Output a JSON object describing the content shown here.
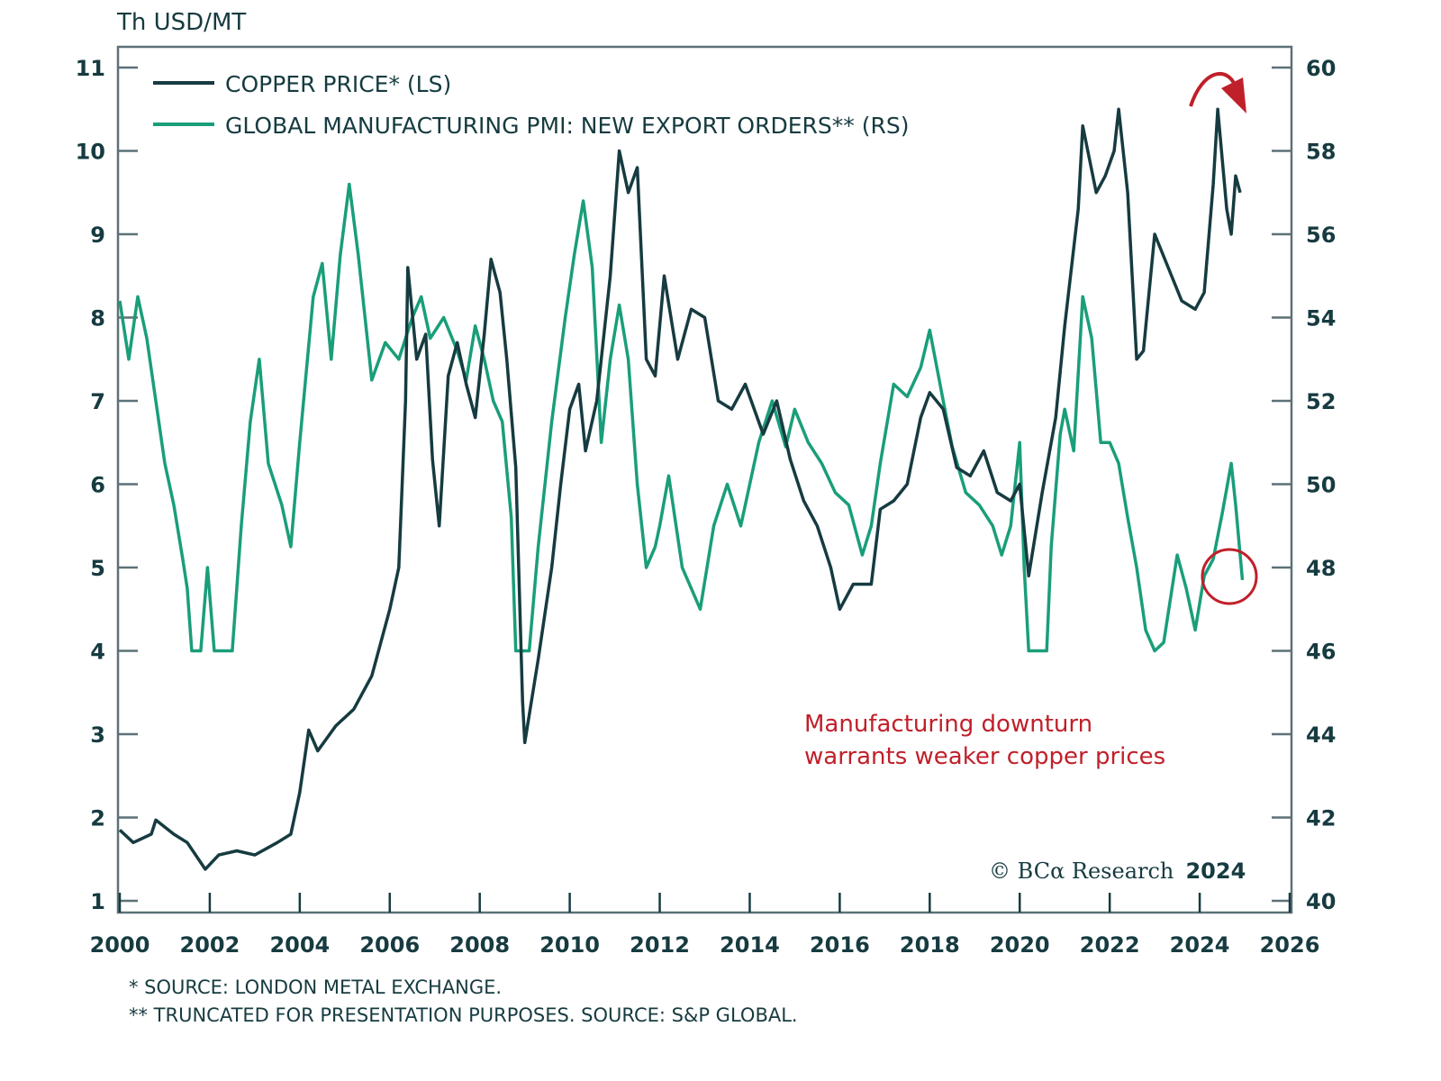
{
  "chart_data": {
    "type": "line",
    "title": "",
    "left_axis_unit": "Th USD/MT",
    "xlabel": "",
    "ylabel_left": "Th USD/MT",
    "ylabel_right": "",
    "xlim": [
      2000,
      2026
    ],
    "ylim_left": [
      1,
      11
    ],
    "ylim_right": [
      40,
      60
    ],
    "x_ticks": [
      2000,
      2002,
      2004,
      2006,
      2008,
      2010,
      2012,
      2014,
      2016,
      2018,
      2020,
      2022,
      2024,
      2026
    ],
    "y_ticks_left": [
      1,
      2,
      3,
      4,
      5,
      6,
      7,
      8,
      9,
      10,
      11
    ],
    "y_ticks_right": [
      40,
      42,
      44,
      46,
      48,
      50,
      52,
      54,
      56,
      58,
      60
    ],
    "grid": false,
    "legend_position": "top-left",
    "series": [
      {
        "name": "COPPER PRICE* (LS)",
        "axis": "left",
        "color": "#163b40",
        "x": [
          2000.0,
          2000.3,
          2000.7,
          2000.8,
          2001.2,
          2001.5,
          2001.9,
          2002.2,
          2002.6,
          2003.0,
          2003.5,
          2003.8,
          2004.0,
          2004.2,
          2004.4,
          2004.8,
          2005.2,
          2005.6,
          2006.0,
          2006.2,
          2006.35,
          2006.4,
          2006.6,
          2006.8,
          2006.95,
          2007.1,
          2007.3,
          2007.5,
          2007.7,
          2007.9,
          2008.1,
          2008.25,
          2008.45,
          2008.6,
          2008.8,
          2008.95,
          2009.0,
          2009.3,
          2009.6,
          2009.8,
          2010.0,
          2010.2,
          2010.35,
          2010.6,
          2010.9,
          2011.1,
          2011.3,
          2011.5,
          2011.7,
          2011.9,
          2012.1,
          2012.4,
          2012.7,
          2013.0,
          2013.3,
          2013.6,
          2013.9,
          2014.3,
          2014.6,
          2014.9,
          2015.2,
          2015.5,
          2015.8,
          2016.0,
          2016.3,
          2016.7,
          2016.9,
          2017.2,
          2017.5,
          2017.8,
          2018.0,
          2018.3,
          2018.6,
          2018.9,
          2019.2,
          2019.5,
          2019.8,
          2020.0,
          2020.2,
          2020.5,
          2020.8,
          2021.0,
          2021.3,
          2021.4,
          2021.7,
          2021.9,
          2022.1,
          2022.2,
          2022.4,
          2022.6,
          2022.75,
          2023.0,
          2023.3,
          2023.6,
          2023.9,
          2024.1,
          2024.3,
          2024.4,
          2024.6,
          2024.7,
          2024.8,
          2024.9
        ],
        "values": [
          1.85,
          1.7,
          1.8,
          1.97,
          1.8,
          1.7,
          1.38,
          1.55,
          1.6,
          1.55,
          1.7,
          1.8,
          2.3,
          3.05,
          2.8,
          3.1,
          3.3,
          3.7,
          4.5,
          5.0,
          7.0,
          8.6,
          7.5,
          7.8,
          6.3,
          5.5,
          7.3,
          7.7,
          7.2,
          6.8,
          7.8,
          8.7,
          8.3,
          7.5,
          6.2,
          3.4,
          2.9,
          3.9,
          5.0,
          6.0,
          6.9,
          7.2,
          6.4,
          7.0,
          8.5,
          10.0,
          9.5,
          9.8,
          7.5,
          7.3,
          8.5,
          7.5,
          8.1,
          8.0,
          7.0,
          6.9,
          7.2,
          6.6,
          7.0,
          6.3,
          5.8,
          5.5,
          5.0,
          4.5,
          4.8,
          4.8,
          5.7,
          5.8,
          6.0,
          6.8,
          7.1,
          6.9,
          6.2,
          6.1,
          6.4,
          5.9,
          5.8,
          6.0,
          4.9,
          5.9,
          6.8,
          7.9,
          9.3,
          10.3,
          9.5,
          9.7,
          10.0,
          10.5,
          9.5,
          7.5,
          7.6,
          9.0,
          8.6,
          8.2,
          8.1,
          8.3,
          9.6,
          10.5,
          9.3,
          9.0,
          9.7,
          9.5
        ]
      },
      {
        "name": "GLOBAL MANUFACTURING PMI: NEW EXPORT ORDERS** (RS)",
        "axis": "right",
        "color": "#1a9e7a",
        "x": [
          2000.0,
          2000.2,
          2000.4,
          2000.6,
          2000.8,
          2001.0,
          2001.2,
          2001.4,
          2001.5,
          2001.6,
          2001.8,
          2001.95,
          2002.1,
          2002.5,
          2002.7,
          2002.9,
          2003.1,
          2003.3,
          2003.6,
          2003.8,
          2004.0,
          2004.3,
          2004.5,
          2004.7,
          2004.9,
          2005.1,
          2005.3,
          2005.6,
          2005.9,
          2006.2,
          2006.5,
          2006.7,
          2006.9,
          2007.2,
          2007.5,
          2007.7,
          2007.9,
          2008.1,
          2008.3,
          2008.5,
          2008.7,
          2008.8,
          2009.1,
          2009.3,
          2009.6,
          2009.9,
          2010.1,
          2010.3,
          2010.5,
          2010.7,
          2010.9,
          2011.1,
          2011.3,
          2011.5,
          2011.7,
          2011.9,
          2012.0,
          2012.2,
          2012.5,
          2012.7,
          2012.9,
          2013.2,
          2013.5,
          2013.8,
          2014.2,
          2014.5,
          2014.8,
          2015.0,
          2015.3,
          2015.6,
          2015.9,
          2016.2,
          2016.5,
          2016.7,
          2016.9,
          2017.2,
          2017.5,
          2017.8,
          2018.0,
          2018.3,
          2018.5,
          2018.8,
          2019.1,
          2019.4,
          2019.6,
          2019.8,
          2020.0,
          2020.1,
          2020.2,
          2020.6,
          2020.7,
          2020.9,
          2021.0,
          2021.2,
          2021.4,
          2021.6,
          2021.8,
          2022.0,
          2022.2,
          2022.4,
          2022.6,
          2022.8,
          2023.0,
          2023.2,
          2023.5,
          2023.7,
          2023.9,
          2024.1,
          2024.3,
          2024.5,
          2024.7,
          2024.8,
          2024.95
        ],
        "values": [
          54.4,
          53.0,
          54.5,
          53.5,
          52.0,
          50.5,
          49.5,
          48.2,
          47.5,
          46.0,
          46.0,
          48.0,
          46.0,
          46.0,
          49.0,
          51.5,
          53.0,
          50.5,
          49.5,
          48.5,
          51.0,
          54.5,
          55.3,
          53.0,
          55.5,
          57.2,
          55.5,
          52.5,
          53.4,
          53.0,
          54.0,
          54.5,
          53.5,
          54.0,
          53.2,
          52.5,
          53.8,
          53.0,
          52.0,
          51.5,
          49.2,
          46.0,
          46.0,
          48.5,
          51.5,
          54.0,
          55.5,
          56.8,
          55.2,
          51.0,
          53.0,
          54.3,
          53.0,
          50.0,
          48.0,
          48.5,
          49.0,
          50.2,
          48.0,
          47.5,
          47.0,
          49.0,
          50.0,
          49.0,
          51.0,
          52.0,
          50.9,
          51.8,
          51.0,
          50.5,
          49.8,
          49.5,
          48.3,
          49.0,
          50.5,
          52.4,
          52.1,
          52.8,
          53.7,
          52.0,
          50.9,
          49.8,
          49.5,
          49.0,
          48.3,
          49.0,
          51.0,
          48.0,
          46.0,
          46.0,
          48.5,
          51.2,
          51.8,
          50.8,
          54.5,
          53.5,
          51.0,
          51.0,
          50.5,
          49.2,
          48.0,
          46.5,
          46.0,
          46.2,
          48.3,
          47.5,
          46.5,
          47.8,
          48.2,
          49.3,
          50.5,
          49.5,
          47.7
        ]
      }
    ],
    "annotations": {
      "text_line1": "Manufacturing downturn",
      "text_line2": "warrants weaker copper prices",
      "color": "#c0202a",
      "arrow": "curved arrow pointing down over 2024 copper peak",
      "circle": "circle around latest PMI reading (2024)"
    }
  },
  "legend": {
    "copper_label": "COPPER PRICE* (LS)",
    "pmi_label": "GLOBAL MANUFACTURING PMI: NEW EXPORT ORDERS** (RS)"
  },
  "copyright": {
    "text": "© BCα Research",
    "year": "2024"
  },
  "footnotes": {
    "line1": "* SOURCE: LONDON METAL EXCHANGE.",
    "line2": "** TRUNCATED FOR PRESENTATION PURPOSES. SOURCE: S&P GLOBAL."
  },
  "colors": {
    "copper": "#163b40",
    "pmi": "#1a9e7a",
    "annotation": "#c0202a",
    "frame": "#5c7177"
  }
}
